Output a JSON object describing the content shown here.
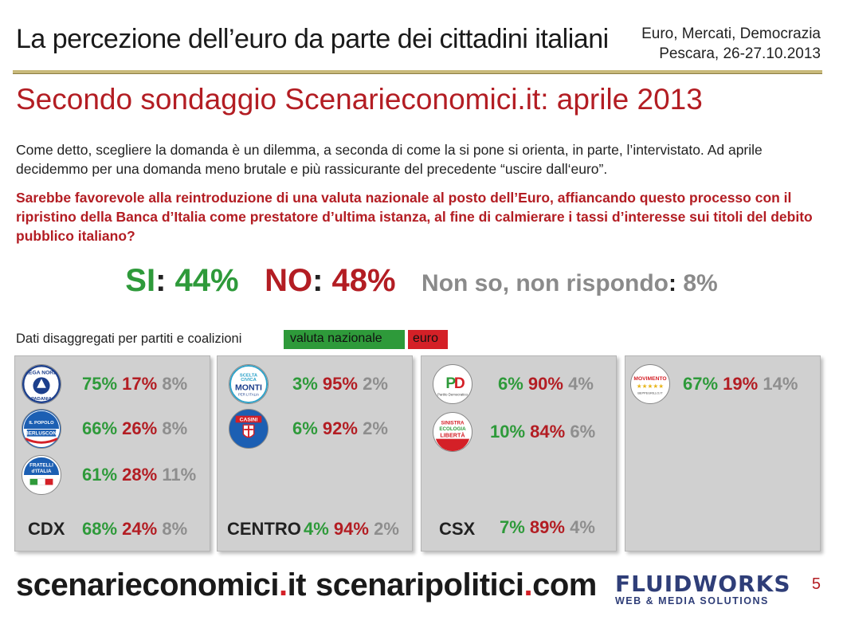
{
  "header": {
    "title": "La percezione dell’euro da parte dei cittadini italiani",
    "conference_line1": "Euro, Mercati, Democrazia",
    "conference_line2": "Pescara, 26-27.10.2013"
  },
  "subtitle": "Secondo sondaggio Scenarieconomici.it: aprile 2013",
  "intro": "Come detto, scegliere la domanda è un dilemma, a seconda di come la si pone si orienta, in parte, l’intervistato. Ad aprile decidemmo per una domanda meno brutale e più rassicurante del precedente “uscire dall‘euro”.",
  "question": "Sarebbe favorevole alla reintroduzione di una valuta nazionale al posto dell’Euro, affiancando questo processo con il ripristino della Banca d’Italia come prestatore d’ultima istanza, al fine di calmierare i tassi d’interesse sui titoli del debito pubblico italiano?",
  "results": {
    "si_label": "SI",
    "si_value": "44%",
    "no_label": "NO",
    "no_value": "48%",
    "ns_label": "Non so, non rispondo",
    "ns_value": "8%",
    "colon": ":"
  },
  "disaggregated": {
    "label": "Dati disaggregati per partiti e coalizioni",
    "legend_green": "valuta nazionale",
    "legend_red": "euro"
  },
  "colors": {
    "green": "#2e9a3a",
    "red": "#b31d23",
    "grey": "#8e8e8e",
    "panel": "#d0d0d0"
  },
  "panels": [
    {
      "coalition": "CDX",
      "total": [
        "68%",
        "24%",
        "8%"
      ],
      "parties": [
        {
          "logo": "lega-nord-logo",
          "logo_text": "LEGA NORD",
          "values": [
            "75%",
            "17%",
            "8%"
          ]
        },
        {
          "logo": "popolo-della-liberta-logo",
          "logo_text": "BERLUSCONI",
          "values": [
            "66%",
            "26%",
            "8%"
          ]
        },
        {
          "logo": "fratelli-d-italia-logo",
          "logo_text": "FRATELLI d'ITALIA",
          "values": [
            "61%",
            "28%",
            "11%"
          ]
        }
      ]
    },
    {
      "coalition": "CENTRO",
      "total": [
        "4%",
        "94%",
        "2%"
      ],
      "parties": [
        {
          "logo": "scelta-civica-logo",
          "logo_text": "MONTI",
          "values": [
            "3%",
            "95%",
            "2%"
          ]
        },
        {
          "logo": "udc-casini-logo",
          "logo_text": "CASINI",
          "values": [
            "6%",
            "92%",
            "2%"
          ]
        }
      ]
    },
    {
      "coalition": "CSX",
      "total": [
        "7%",
        "89%",
        "4%"
      ],
      "parties": [
        {
          "logo": "partito-democratico-logo",
          "logo_text": "PD",
          "values": [
            "6%",
            "90%",
            "4%"
          ]
        },
        {
          "logo": "sel-logo",
          "logo_text": "SINISTRA ECOLOGIA LIBERTÀ",
          "values": [
            "10%",
            "84%",
            "6%"
          ]
        }
      ]
    },
    {
      "coalition": "",
      "total": [],
      "parties": [
        {
          "logo": "movimento-5-stelle-logo",
          "logo_text": "MOVIMENTO",
          "values": [
            "67%",
            "19%",
            "14%"
          ]
        }
      ]
    }
  ],
  "footer": {
    "site1_a": "scenarieconomici",
    "site1_dot": ".",
    "site1_b": "it",
    "site2_a": "scenaripolitici",
    "site2_dot": ".",
    "site2_b": "com",
    "brand_main": "FLUIDWORKS",
    "brand_sub": "WEB & MEDIA SOLUTIONS",
    "page_number": "5"
  }
}
